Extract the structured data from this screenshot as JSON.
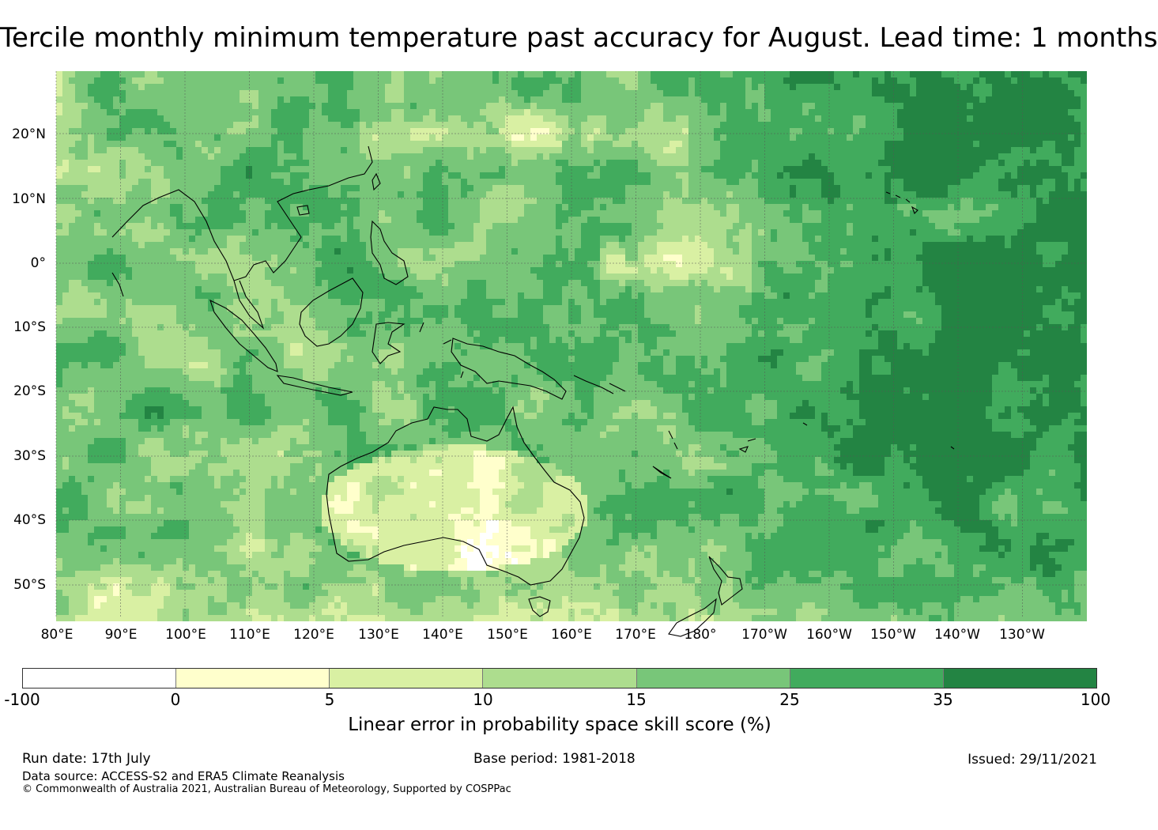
{
  "title": "Tercile monthly minimum temperature past accuracy for August. Lead time: 1 months",
  "map": {
    "lat_labels": [
      "20°N",
      "10°N",
      "0°",
      "10°S",
      "20°S",
      "30°S",
      "40°S",
      "50°S"
    ],
    "lon_labels": [
      "80°E",
      "90°E",
      "100°E",
      "110°E",
      "120°E",
      "130°E",
      "140°E",
      "150°E",
      "160°E",
      "170°E",
      "180°",
      "170°W",
      "160°W",
      "150°W",
      "140°W",
      "130°W"
    ],
    "lat_range": [
      -55,
      30
    ],
    "lon_range": [
      80,
      240
    ],
    "regions": [
      "Indian Ocean",
      "Maritime Continent",
      "Australia",
      "New Zealand",
      "Pacific Ocean"
    ],
    "high_skill_note": "",
    "colors": {
      "ocean_dark": "#238443",
      "coast": "#000000",
      "grid": "#555555"
    }
  },
  "colorbar": {
    "ticks": [
      "-100",
      "0",
      "5",
      "10",
      "15",
      "25",
      "35",
      "100"
    ],
    "colors": [
      "#ffffff",
      "#ffffcc",
      "#d9f0a3",
      "#addd8e",
      "#78c679",
      "#41ab5d",
      "#238443"
    ],
    "label": "Linear error in probability space skill score (%)"
  },
  "footer": {
    "run_date": "Run date: 17th July",
    "base_period": "Base period: 1981-2018",
    "issued": "Issued: 29/11/2021",
    "data_source": "Data source: ACCESS-S2 and ERA5 Climate Reanalysis",
    "copyright": "© Commonwealth of Australia 2021, Australian Bureau of Meteorology, Supported by COSPPac"
  }
}
